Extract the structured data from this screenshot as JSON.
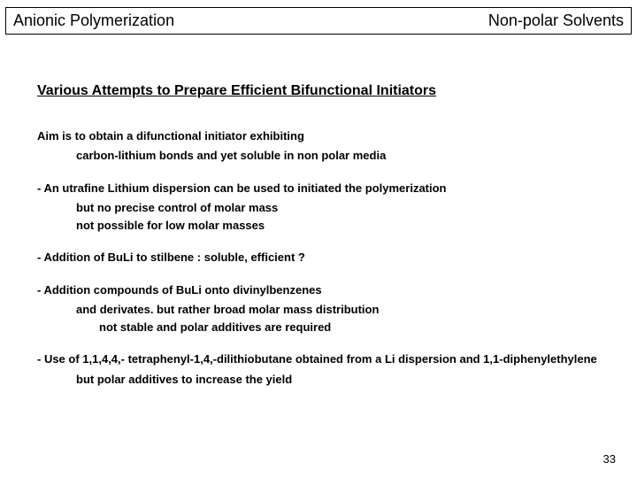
{
  "header": {
    "left": "Anionic Polymerization",
    "right": "Non-polar Solvents"
  },
  "title": "Various Attempts to Prepare Efficient Bifunctional Initiators",
  "aim": {
    "lead": "Aim is to obtain a difunctional initiator exhibiting",
    "sub1": "carbon-lithium bonds and yet soluble in non polar media"
  },
  "p1": {
    "lead": "- An utrafine Lithium dispersion can be used to initiated the polymerization",
    "sub1": "but no precise control of molar mass",
    "sub2": "not possible for low molar masses"
  },
  "p2": {
    "lead": "- Addition of BuLi to stilbene : soluble, efficient ?"
  },
  "p3": {
    "lead": "- Addition compounds of BuLi onto divinylbenzenes",
    "sub1": "and derivates.  but rather broad molar mass distribution",
    "sub2": "not stable and polar additives are required"
  },
  "p4": {
    "lead": "- Use of 1,1,4,4,- tetraphenyl-1,4,-dilithiobutane obtained from a Li dispersion and 1,1-diphenylethylene",
    "sub1": "but polar additives to increase the yield"
  },
  "pagenum": "33"
}
